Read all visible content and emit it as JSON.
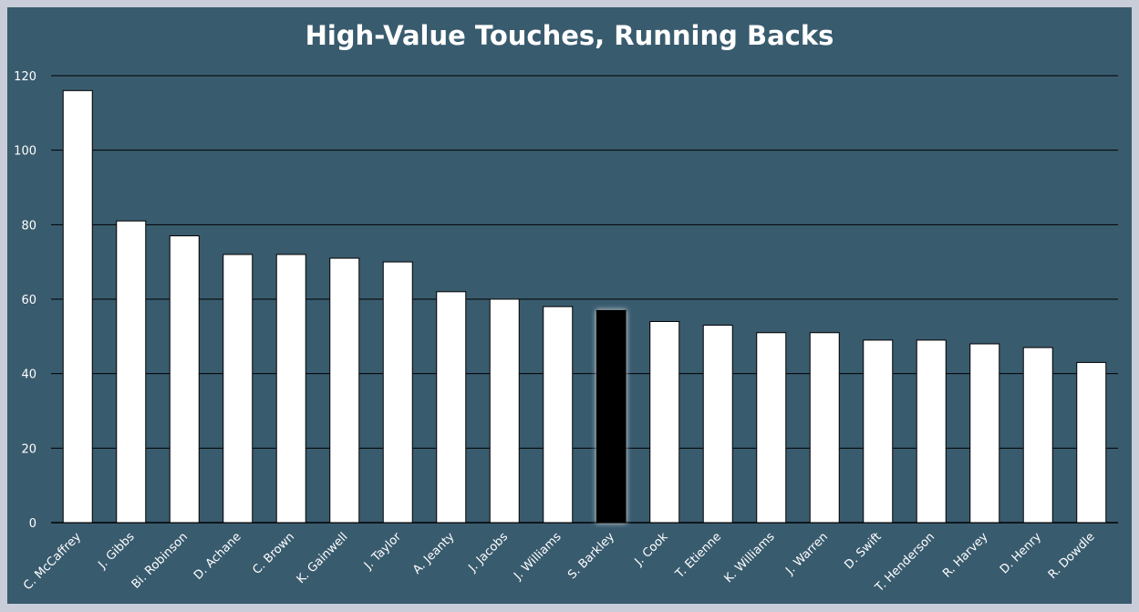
{
  "chart_data": {
    "type": "bar",
    "title": "High-Value Touches, Running Backs",
    "xlabel": "",
    "ylabel": "",
    "ylim": [
      0,
      120
    ],
    "yticks": [
      0,
      20,
      40,
      60,
      80,
      100,
      120
    ],
    "grid": true,
    "categories": [
      "C. McCaffrey",
      "J. Gibbs",
      "Bi. Robinson",
      "D. Achane",
      "C. Brown",
      "K. Gainwell",
      "J. Taylor",
      "A. Jeanty",
      "J. Jacobs",
      "J. Williams",
      "S. Barkley",
      "J. Cook",
      "T. Etienne",
      "K. Williams",
      "J. Warren",
      "D. Swift",
      "T. Henderson",
      "R. Harvey",
      "D. Henry",
      "R. Dowdle"
    ],
    "values": [
      116,
      81,
      77,
      72,
      72,
      71,
      70,
      62,
      60,
      58,
      57,
      54,
      53,
      51,
      51,
      49,
      49,
      48,
      47,
      43
    ],
    "highlight": "S. Barkley",
    "colors": {
      "bar": "#ffffff",
      "highlight": "#000000",
      "background": "#395b6e",
      "grid": "#000000"
    }
  }
}
